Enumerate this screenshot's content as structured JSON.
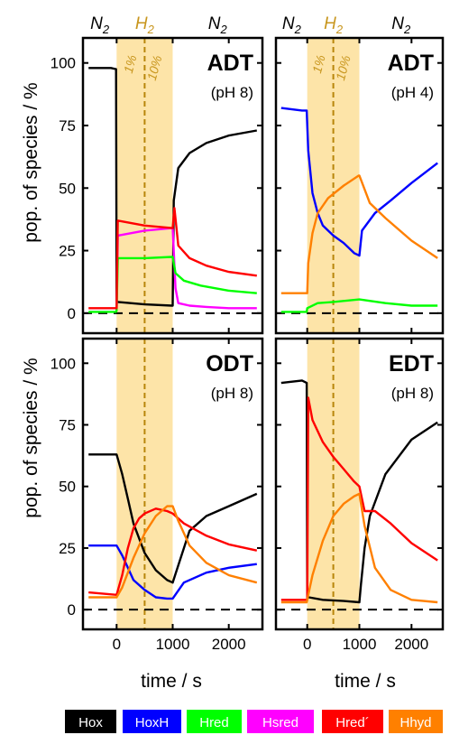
{
  "figure": {
    "ylabel": "pop. of species / %",
    "xlabel": "time / s",
    "gas_labels": {
      "n2": "N",
      "h2": "H",
      "sub": "2"
    },
    "h2_annotations": [
      "1%",
      "10%"
    ],
    "colors": {
      "h2_band": "#fde4a8",
      "h2_text": "#c8961e",
      "dashed_line": "#b8860b"
    }
  },
  "legend": [
    {
      "label": "Hox",
      "color": "#000000"
    },
    {
      "label": "HoxH",
      "color": "#0000ff"
    },
    {
      "label": "Hred",
      "color": "#00ff00"
    },
    {
      "label": "Hsred",
      "color": "#ff00ff"
    },
    {
      "label": "Hred´",
      "color": "#ff0000"
    },
    {
      "label": "Hhyd",
      "color": "#ff8000"
    }
  ],
  "chart_data": [
    {
      "type": "line",
      "title": "ADT",
      "subtitle": "(pH 8)",
      "xlim": [
        -600,
        2600
      ],
      "ylim": [
        -8,
        110
      ],
      "xticks": [
        0,
        1000,
        2000
      ],
      "yticks": [
        0,
        25,
        50,
        75,
        100
      ],
      "h2_window": [
        0,
        1000
      ],
      "series": [
        {
          "name": "Hox",
          "color": "#000000",
          "x": [
            -500,
            -100,
            -10,
            0,
            20,
            500,
            990,
            1000,
            1020,
            1100,
            1300,
            1600,
            2000,
            2500
          ],
          "y": [
            98,
            98,
            97.5,
            5,
            4.5,
            3.5,
            3,
            3,
            45,
            58,
            64,
            68,
            71,
            73
          ]
        },
        {
          "name": "Hsred",
          "color": "#ff00ff",
          "x": [
            0,
            20,
            500,
            990,
            1000,
            1050,
            1100,
            1300,
            1600,
            2000,
            2500
          ],
          "y": [
            1,
            31,
            33,
            34,
            34,
            10,
            4,
            3,
            2.5,
            2,
            2
          ]
        },
        {
          "name": "Hred",
          "color": "#00ff00",
          "x": [
            -500,
            -10,
            0,
            20,
            500,
            990,
            1000,
            1050,
            1200,
            1500,
            2000,
            2500
          ],
          "y": [
            0.5,
            0.5,
            1,
            22,
            22,
            22.5,
            22.5,
            16,
            13,
            11,
            9,
            8
          ]
        },
        {
          "name": "Hred´",
          "color": "#ff0000",
          "x": [
            -500,
            -10,
            0,
            20,
            500,
            990,
            1000,
            1030,
            1100,
            1300,
            1600,
            2000,
            2500
          ],
          "y": [
            2,
            2,
            2,
            37,
            35,
            34,
            34,
            42,
            27,
            22,
            19,
            16.5,
            15
          ]
        }
      ]
    },
    {
      "type": "line",
      "title": "ADT",
      "subtitle": "(pH 4)",
      "xlim": [
        -600,
        2600
      ],
      "ylim": [
        -8,
        110
      ],
      "xticks": [
        0,
        1000,
        2000
      ],
      "yticks": [
        0,
        25,
        50,
        75,
        100
      ],
      "h2_window": [
        0,
        1000
      ],
      "series": [
        {
          "name": "HoxH",
          "color": "#0000ff",
          "x": [
            -500,
            -100,
            -10,
            20,
            100,
            200,
            300,
            500,
            700,
            900,
            1000,
            1050,
            1300,
            1600,
            2000,
            2500
          ],
          "y": [
            82,
            81,
            81,
            65,
            48,
            40,
            35,
            31,
            28,
            24,
            23,
            33,
            40,
            45,
            52,
            60
          ]
        },
        {
          "name": "Hhyd",
          "color": "#ff8000",
          "x": [
            -500,
            -10,
            0,
            20,
            100,
            200,
            400,
            700,
            990,
            1000,
            1200,
            1500,
            2000,
            2500
          ],
          "y": [
            8,
            8,
            8,
            20,
            32,
            40,
            46,
            51,
            55,
            55,
            44,
            38,
            29,
            22
          ]
        },
        {
          "name": "Hred",
          "color": "#00ff00",
          "x": [
            -500,
            -10,
            0,
            200,
            500,
            1000,
            1500,
            2000,
            2500
          ],
          "y": [
            0.5,
            0.5,
            2,
            4,
            4.5,
            5.5,
            4,
            3,
            3
          ]
        }
      ]
    },
    {
      "type": "line",
      "title": "ODT",
      "subtitle": "(pH 8)",
      "xlim": [
        -600,
        2600
      ],
      "ylim": [
        -8,
        110
      ],
      "xticks": [
        0,
        1000,
        2000
      ],
      "yticks": [
        0,
        25,
        50,
        75,
        100
      ],
      "h2_window": [
        0,
        1000
      ],
      "series": [
        {
          "name": "Hox",
          "color": "#000000",
          "x": [
            -500,
            -100,
            0,
            100,
            200,
            300,
            500,
            700,
            900,
            1000,
            1100,
            1300,
            1600,
            2000,
            2500
          ],
          "y": [
            63,
            63,
            63,
            55,
            45,
            35,
            23,
            16,
            12,
            11,
            18,
            32,
            38,
            42,
            47
          ]
        },
        {
          "name": "HoxH",
          "color": "#0000ff",
          "x": [
            -500,
            -100,
            0,
            100,
            200,
            300,
            500,
            700,
            900,
            1000,
            1200,
            1600,
            2000,
            2500
          ],
          "y": [
            26,
            26,
            26,
            22,
            17,
            12,
            8,
            5,
            4.5,
            4.5,
            11,
            15,
            17,
            18.5
          ]
        },
        {
          "name": "Hred´",
          "color": "#ff0000",
          "x": [
            -500,
            0,
            100,
            200,
            300,
            400,
            500,
            700,
            900,
            1000,
            1200,
            1600,
            2000,
            2500
          ],
          "y": [
            7,
            6,
            14,
            25,
            33,
            37,
            39,
            41,
            40,
            39,
            35,
            30,
            26.5,
            24
          ]
        },
        {
          "name": "Hhyd",
          "color": "#ff8000",
          "x": [
            -500,
            0,
            100,
            300,
            500,
            700,
            900,
            1000,
            1100,
            1300,
            1600,
            2000,
            2500
          ],
          "y": [
            5,
            5,
            9,
            21,
            31,
            38,
            42,
            42,
            36,
            26,
            19,
            14,
            11
          ]
        }
      ]
    },
    {
      "type": "line",
      "title": "EDT",
      "subtitle": "(pH 8)",
      "xlim": [
        -600,
        2600
      ],
      "ylim": [
        -8,
        110
      ],
      "xticks": [
        0,
        1000,
        2000
      ],
      "yticks": [
        0,
        25,
        50,
        75,
        100
      ],
      "h2_window": [
        0,
        1000
      ],
      "series": [
        {
          "name": "Hox",
          "color": "#000000",
          "x": [
            -500,
            -100,
            -10,
            0,
            30,
            300,
            700,
            1000,
            1030,
            1100,
            1200,
            1500,
            2000,
            2500
          ],
          "y": [
            92,
            93,
            92,
            5,
            5,
            4,
            3.5,
            3,
            10,
            25,
            38,
            55,
            69,
            76
          ]
        },
        {
          "name": "Hred´",
          "color": "#ff0000",
          "x": [
            -500,
            -10,
            0,
            20,
            100,
            300,
            500,
            700,
            900,
            1000,
            1100,
            1300,
            1600,
            2000,
            2500
          ],
          "y": [
            4,
            4,
            4,
            86,
            77,
            68,
            62,
            57,
            52,
            50,
            40,
            40,
            35,
            27,
            20
          ]
        },
        {
          "name": "Hhyd",
          "color": "#ff8000",
          "x": [
            -500,
            -10,
            0,
            100,
            300,
            500,
            700,
            900,
            1000,
            1100,
            1300,
            1600,
            2000,
            2500
          ],
          "y": [
            3,
            3,
            4,
            14,
            28,
            38,
            43,
            46,
            47,
            34,
            17,
            8,
            4,
            3
          ]
        }
      ]
    }
  ]
}
